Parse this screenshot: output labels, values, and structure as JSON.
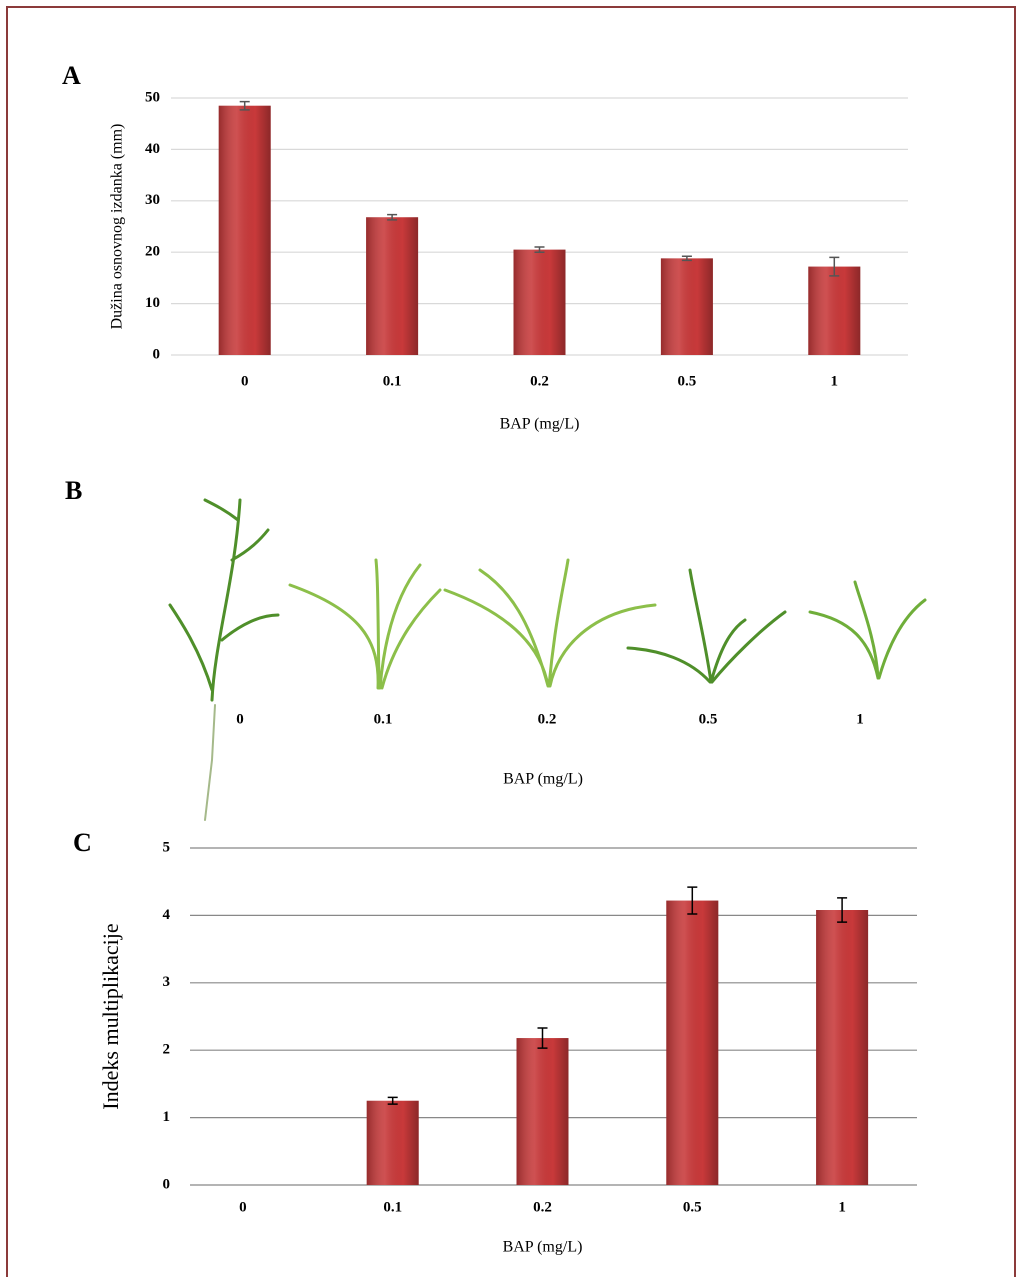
{
  "chart_data": [
    {
      "type": "bar",
      "label": "A",
      "xlabel": "BAP (mg/L)",
      "ylabel": "Dužina osnovnog izdanka (mm)",
      "categories": [
        "0",
        "0.1",
        "0.2",
        "0.5",
        "1"
      ],
      "values": [
        48.5,
        26.8,
        20.5,
        18.8,
        17.2
      ],
      "errors": [
        0.8,
        0.5,
        0.5,
        0.4,
        1.8
      ],
      "color": "#c8393a",
      "ylim": [
        0,
        50
      ],
      "yticks": [
        0,
        10,
        20,
        30,
        40,
        50
      ],
      "grid": true
    },
    {
      "type": "bar",
      "label": "C",
      "xlabel": "BAP (mg/L)",
      "ylabel": "Indeks multiplikacije",
      "categories": [
        "0",
        "0.1",
        "0.2",
        "0.5",
        "1"
      ],
      "values": [
        0,
        1.25,
        2.18,
        4.22,
        4.08
      ],
      "errors": [
        0,
        0.05,
        0.15,
        0.2,
        0.18
      ],
      "color": "#c8393a",
      "ylim": [
        0,
        5
      ],
      "yticks": [
        0,
        1,
        2,
        3,
        4,
        5
      ],
      "grid": true
    }
  ],
  "photo_panel": {
    "label": "B",
    "categories": [
      "0",
      "0.1",
      "0.2",
      "0.5",
      "1"
    ],
    "xlabel": "BAP (mg/L)"
  }
}
